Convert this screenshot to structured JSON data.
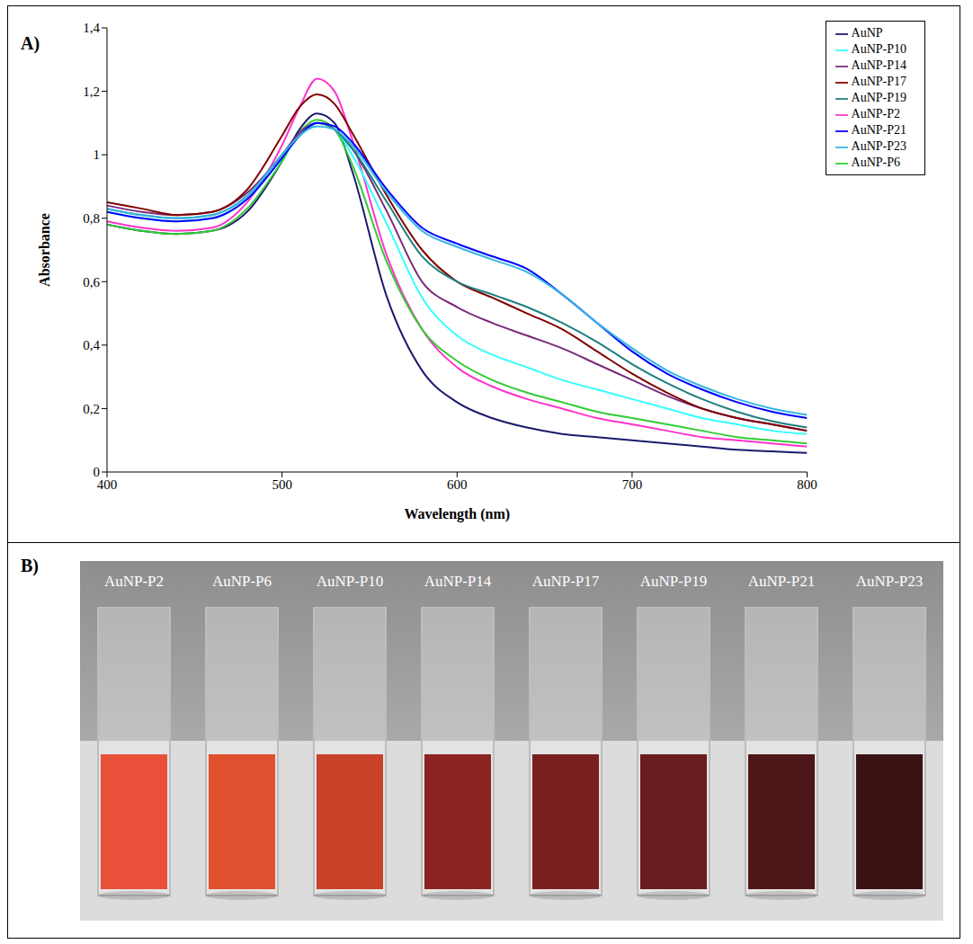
{
  "chart_data": {
    "type": "line",
    "annotations": [
      "A)"
    ],
    "xlabel": "Wavelength (nm)",
    "ylabel": "Absorbance",
    "x": [
      400,
      420,
      440,
      460,
      480,
      500,
      510,
      520,
      530,
      540,
      560,
      580,
      600,
      620,
      640,
      660,
      680,
      700,
      720,
      740,
      760,
      780,
      800
    ],
    "xlim": [
      400,
      800
    ],
    "xticks": [
      400,
      500,
      600,
      700,
      800
    ],
    "ylim": [
      0,
      1.4
    ],
    "yticks": [
      0,
      {
        "value": 0.2,
        "label": "0,2"
      },
      {
        "value": 0.4,
        "label": "0,4"
      },
      {
        "value": 0.6,
        "label": "0,6"
      },
      {
        "value": 0.8,
        "label": "0,8"
      },
      1,
      {
        "value": 1.2,
        "label": "1,2"
      },
      {
        "value": 1.4,
        "label": "1,4"
      }
    ],
    "grid": false,
    "legend": "upper right",
    "series": [
      {
        "name": "AuNP",
        "color": "#1a1a6e",
        "values": [
          0.78,
          0.76,
          0.75,
          0.76,
          0.82,
          0.98,
          1.08,
          1.13,
          1.1,
          0.95,
          0.55,
          0.32,
          0.22,
          0.17,
          0.14,
          0.12,
          0.11,
          0.1,
          0.09,
          0.08,
          0.07,
          0.065,
          0.06
        ]
      },
      {
        "name": "AuNP-P2",
        "color": "#ff33cc",
        "values": [
          0.79,
          0.77,
          0.76,
          0.77,
          0.85,
          1.03,
          1.15,
          1.24,
          1.2,
          1.05,
          0.68,
          0.45,
          0.33,
          0.27,
          0.23,
          0.2,
          0.17,
          0.15,
          0.13,
          0.11,
          0.1,
          0.09,
          0.08
        ]
      },
      {
        "name": "AuNP-P6",
        "color": "#33cc33",
        "values": [
          0.78,
          0.76,
          0.75,
          0.76,
          0.83,
          0.98,
          1.07,
          1.11,
          1.08,
          0.97,
          0.66,
          0.45,
          0.35,
          0.29,
          0.25,
          0.22,
          0.19,
          0.17,
          0.15,
          0.13,
          0.11,
          0.1,
          0.09
        ]
      },
      {
        "name": "AuNP-P10",
        "color": "#33ffff",
        "values": [
          0.82,
          0.8,
          0.79,
          0.8,
          0.86,
          0.99,
          1.06,
          1.1,
          1.08,
          1.0,
          0.78,
          0.55,
          0.43,
          0.37,
          0.33,
          0.29,
          0.26,
          0.23,
          0.2,
          0.17,
          0.15,
          0.13,
          0.12
        ]
      },
      {
        "name": "AuNP-P14",
        "color": "#7a2a7a",
        "values": [
          0.84,
          0.82,
          0.81,
          0.82,
          0.88,
          1.0,
          1.07,
          1.1,
          1.08,
          1.02,
          0.82,
          0.6,
          0.52,
          0.47,
          0.43,
          0.39,
          0.34,
          0.29,
          0.24,
          0.2,
          0.17,
          0.15,
          0.13
        ]
      },
      {
        "name": "AuNP-P17",
        "color": "#800000",
        "values": [
          0.85,
          0.83,
          0.81,
          0.82,
          0.89,
          1.06,
          1.15,
          1.19,
          1.16,
          1.07,
          0.87,
          0.7,
          0.6,
          0.55,
          0.5,
          0.45,
          0.38,
          0.31,
          0.25,
          0.2,
          0.17,
          0.15,
          0.13
        ]
      },
      {
        "name": "AuNP-P19",
        "color": "#1f7f7f",
        "values": [
          0.83,
          0.81,
          0.8,
          0.81,
          0.87,
          1.0,
          1.06,
          1.1,
          1.08,
          1.02,
          0.85,
          0.68,
          0.6,
          0.56,
          0.52,
          0.47,
          0.41,
          0.34,
          0.28,
          0.23,
          0.19,
          0.16,
          0.14
        ]
      },
      {
        "name": "AuNP-P21",
        "color": "#0000ff",
        "values": [
          0.82,
          0.8,
          0.79,
          0.8,
          0.86,
          0.99,
          1.06,
          1.1,
          1.09,
          1.04,
          0.89,
          0.77,
          0.72,
          0.68,
          0.64,
          0.56,
          0.47,
          0.38,
          0.31,
          0.26,
          0.22,
          0.19,
          0.17
        ]
      },
      {
        "name": "AuNP-P23",
        "color": "#33b5e5",
        "values": [
          0.83,
          0.81,
          0.8,
          0.81,
          0.87,
          1.0,
          1.06,
          1.09,
          1.08,
          1.03,
          0.88,
          0.76,
          0.71,
          0.67,
          0.63,
          0.56,
          0.47,
          0.39,
          0.32,
          0.27,
          0.23,
          0.2,
          0.18
        ]
      }
    ]
  },
  "photo": {
    "annotations": [
      "B)"
    ],
    "labels": [
      "AuNP-P2",
      "AuNP-P6",
      "AuNP-P10",
      "AuNP-P14",
      "AuNP-P17",
      "AuNP-P19",
      "AuNP-P21",
      "AuNP-P23"
    ],
    "colors": [
      "#e8503a",
      "#e0502e",
      "#c8422a",
      "#8a2322",
      "#7a1f20",
      "#6a1c1e",
      "#4e1618",
      "#3a1214"
    ]
  }
}
